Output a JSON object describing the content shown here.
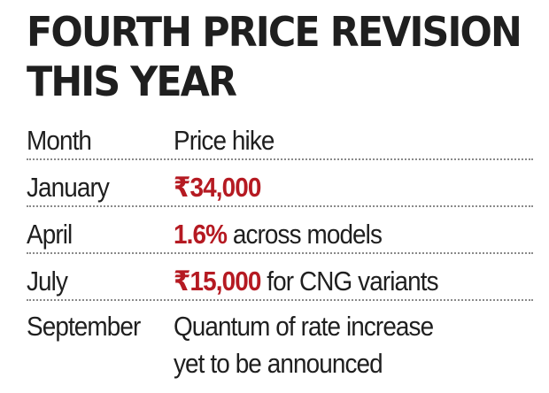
{
  "headline": {
    "line1": "FOURTH PRICE REVISION",
    "line2": "THIS YEAR"
  },
  "table": {
    "header": {
      "month": "Month",
      "price_hike": "Price hike"
    },
    "rows": [
      {
        "month": "January",
        "highlight": "₹34,000",
        "rest": ""
      },
      {
        "month": "April",
        "highlight": "1.6%",
        "rest": " across models"
      },
      {
        "month": "July",
        "highlight": "₹15,000",
        "rest": " for CNG variants"
      },
      {
        "month": "September",
        "line1": "Quantum of rate increase",
        "line2": "yet to be announced"
      }
    ]
  },
  "colors": {
    "highlight": "#b51a22",
    "text": "#1f1f1f",
    "divider": "#8a8a8a"
  }
}
